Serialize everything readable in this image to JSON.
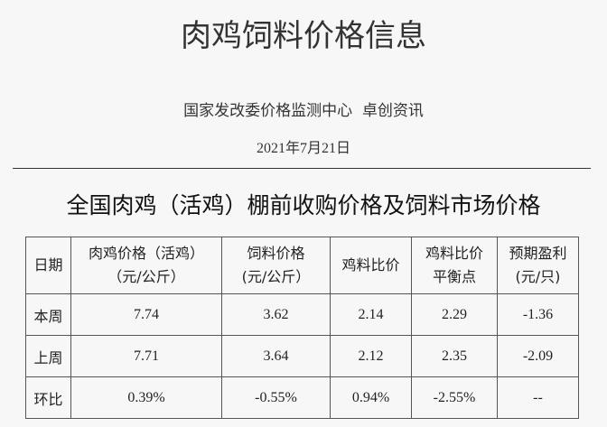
{
  "header": {
    "title": "肉鸡饲料价格信息",
    "source": "国家发改委价格监测中心  卓创资讯",
    "date": "2021年7月21日"
  },
  "table": {
    "title": "全国肉鸡（活鸡）棚前收购价格及饲料市场价格",
    "columns": [
      [
        "日期"
      ],
      [
        "肉鸡价格（活鸡）",
        "（元/公斤）"
      ],
      [
        "饲料价格",
        "(元/公斤）"
      ],
      [
        "鸡料比价"
      ],
      [
        "鸡料比价",
        "平衡点"
      ],
      [
        "预期盈利",
        "(元/只)"
      ]
    ],
    "rows": [
      [
        "本周",
        "7.74",
        "3.62",
        "2.14",
        "2.29",
        "-1.36"
      ],
      [
        "上周",
        "7.71",
        "3.64",
        "2.12",
        "2.35",
        "-2.09"
      ],
      [
        "环比",
        "0.39%",
        "-0.55%",
        "0.94%",
        "-2.55%",
        "--"
      ]
    ]
  }
}
